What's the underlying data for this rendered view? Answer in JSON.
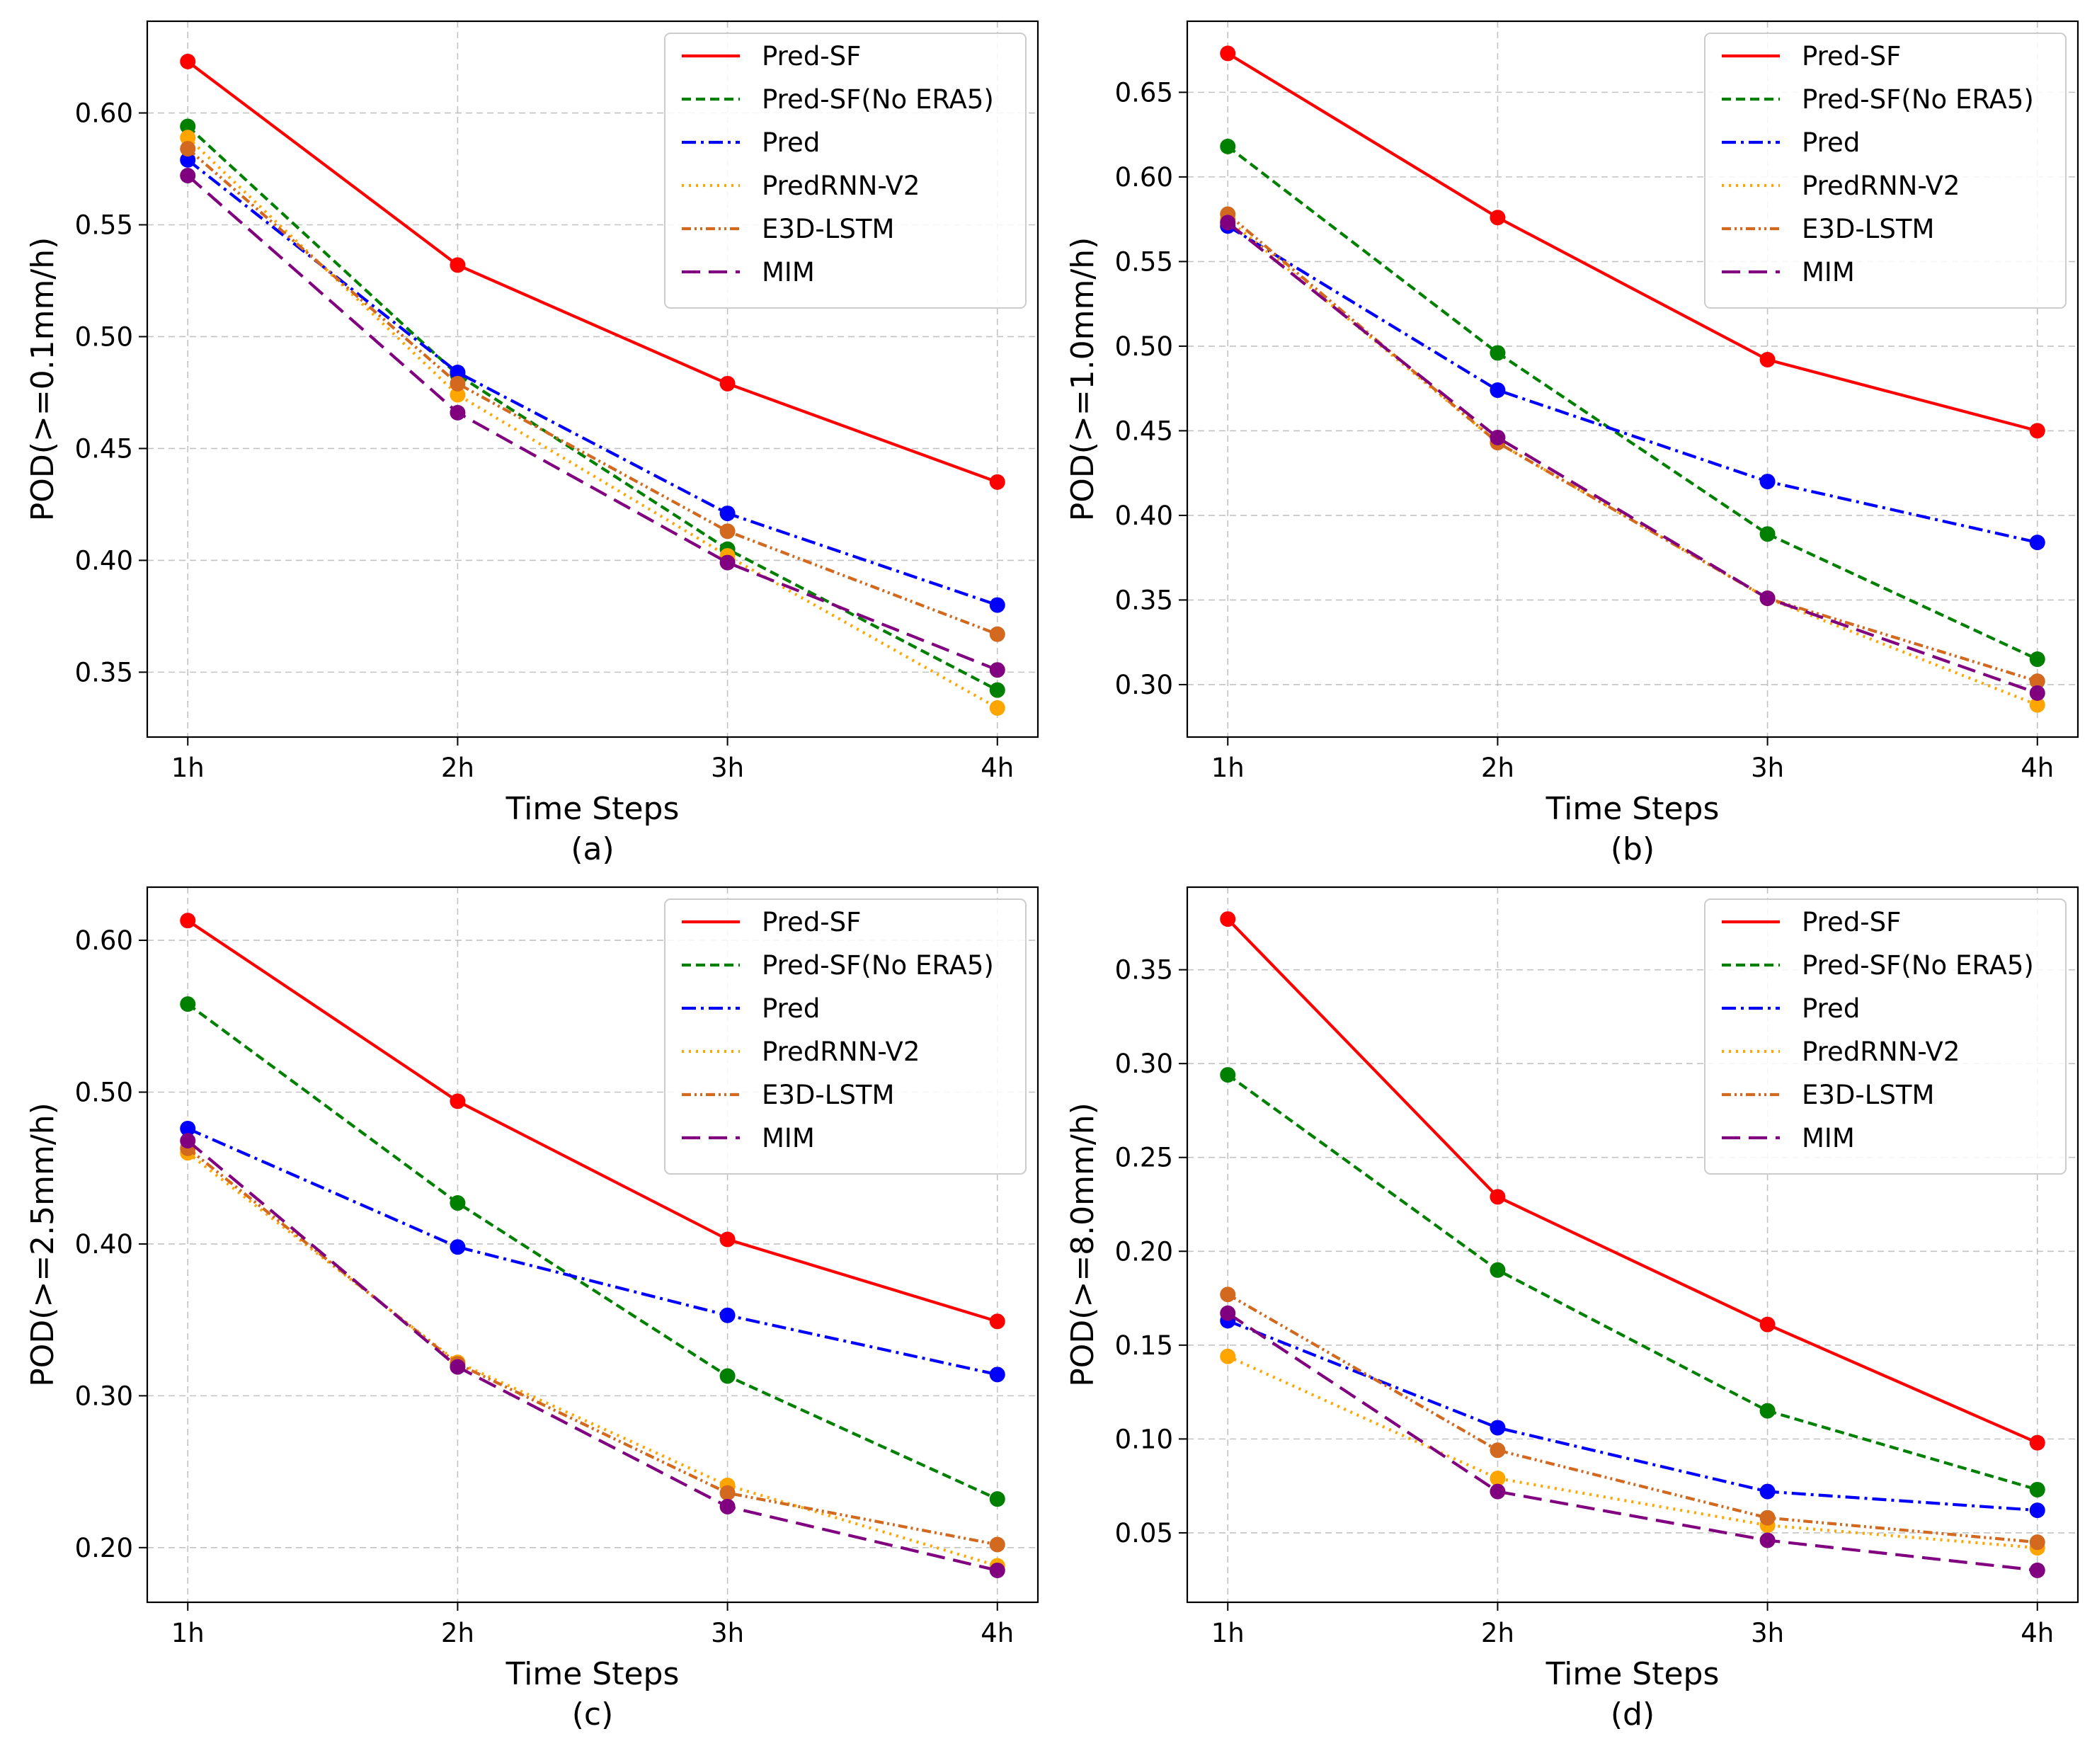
{
  "chart_data": [
    {
      "type": "line",
      "panel_label": "(a)",
      "xlabel": "Time Steps",
      "ylabel": "POD(>=0.1mm/h)",
      "categories": [
        "1h",
        "2h",
        "3h",
        "4h"
      ],
      "ylim": [
        0.321,
        0.641
      ],
      "yticks": [
        "0.35",
        "0.40",
        "0.45",
        "0.50",
        "0.55",
        "0.60"
      ],
      "legend_position": "top-right",
      "series": [
        {
          "name": "Pred-SF",
          "color": "#ff0000",
          "values": [
            0.623,
            0.532,
            0.479,
            0.435
          ]
        },
        {
          "name": "Pred-SF(No ERA5)",
          "color": "#008000",
          "values": [
            0.594,
            0.483,
            0.405,
            0.342
          ]
        },
        {
          "name": "Pred",
          "color": "#0000ff",
          "values": [
            0.579,
            0.484,
            0.421,
            0.38
          ]
        },
        {
          "name": "PredRNN-V2",
          "color": "#ffa500",
          "values": [
            0.589,
            0.474,
            0.402,
            0.334
          ]
        },
        {
          "name": "E3D-LSTM",
          "color": "#d2691e",
          "values": [
            0.584,
            0.479,
            0.413,
            0.367
          ]
        },
        {
          "name": "MIM",
          "color": "#800080",
          "values": [
            0.572,
            0.466,
            0.399,
            0.351
          ]
        }
      ]
    },
    {
      "type": "line",
      "panel_label": "(b)",
      "xlabel": "Time Steps",
      "ylabel": "POD(>=1.0mm/h)",
      "categories": [
        "1h",
        "2h",
        "3h",
        "4h"
      ],
      "ylim": [
        0.269,
        0.692
      ],
      "yticks": [
        "0.30",
        "0.35",
        "0.40",
        "0.45",
        "0.50",
        "0.55",
        "0.60",
        "0.65"
      ],
      "legend_position": "top-right",
      "series": [
        {
          "name": "Pred-SF",
          "color": "#ff0000",
          "values": [
            0.673,
            0.576,
            0.492,
            0.45
          ]
        },
        {
          "name": "Pred-SF(No ERA5)",
          "color": "#008000",
          "values": [
            0.618,
            0.496,
            0.389,
            0.315
          ]
        },
        {
          "name": "Pred",
          "color": "#0000ff",
          "values": [
            0.571,
            0.474,
            0.42,
            0.384
          ]
        },
        {
          "name": "PredRNN-V2",
          "color": "#ffa500",
          "values": [
            0.575,
            0.443,
            0.351,
            0.288
          ]
        },
        {
          "name": "E3D-LSTM",
          "color": "#d2691e",
          "values": [
            0.578,
            0.443,
            0.351,
            0.302
          ]
        },
        {
          "name": "MIM",
          "color": "#800080",
          "values": [
            0.573,
            0.446,
            0.351,
            0.295
          ]
        }
      ]
    },
    {
      "type": "line",
      "panel_label": "(c)",
      "xlabel": "Time Steps",
      "ylabel": "POD(>=2.5mm/h)",
      "categories": [
        "1h",
        "2h",
        "3h",
        "4h"
      ],
      "ylim": [
        0.164,
        0.635
      ],
      "yticks": [
        "0.20",
        "0.30",
        "0.40",
        "0.50",
        "0.60"
      ],
      "legend_position": "top-right",
      "series": [
        {
          "name": "Pred-SF",
          "color": "#ff0000",
          "values": [
            0.613,
            0.494,
            0.403,
            0.349
          ]
        },
        {
          "name": "Pred-SF(No ERA5)",
          "color": "#008000",
          "values": [
            0.558,
            0.427,
            0.313,
            0.232
          ]
        },
        {
          "name": "Pred",
          "color": "#0000ff",
          "values": [
            0.476,
            0.398,
            0.353,
            0.314
          ]
        },
        {
          "name": "PredRNN-V2",
          "color": "#ffa500",
          "values": [
            0.46,
            0.322,
            0.241,
            0.188
          ]
        },
        {
          "name": "E3D-LSTM",
          "color": "#d2691e",
          "values": [
            0.463,
            0.321,
            0.236,
            0.202
          ]
        },
        {
          "name": "MIM",
          "color": "#800080",
          "values": [
            0.468,
            0.319,
            0.227,
            0.185
          ]
        }
      ]
    },
    {
      "type": "line",
      "panel_label": "(d)",
      "xlabel": "Time Steps",
      "ylabel": "POD(>=8.0mm/h)",
      "categories": [
        "1h",
        "2h",
        "3h",
        "4h"
      ],
      "ylim": [
        0.013,
        0.394
      ],
      "yticks": [
        "0.05",
        "0.10",
        "0.15",
        "0.20",
        "0.25",
        "0.30",
        "0.35"
      ],
      "legend_position": "top-right",
      "series": [
        {
          "name": "Pred-SF",
          "color": "#ff0000",
          "values": [
            0.377,
            0.229,
            0.161,
            0.098
          ]
        },
        {
          "name": "Pred-SF(No ERA5)",
          "color": "#008000",
          "values": [
            0.294,
            0.19,
            0.115,
            0.073
          ]
        },
        {
          "name": "Pred",
          "color": "#0000ff",
          "values": [
            0.163,
            0.106,
            0.072,
            0.062
          ]
        },
        {
          "name": "PredRNN-V2",
          "color": "#ffa500",
          "values": [
            0.144,
            0.079,
            0.054,
            0.042
          ]
        },
        {
          "name": "E3D-LSTM",
          "color": "#d2691e",
          "values": [
            0.177,
            0.094,
            0.058,
            0.045
          ]
        },
        {
          "name": "MIM",
          "color": "#800080",
          "values": [
            0.167,
            0.072,
            0.046,
            0.03
          ]
        }
      ]
    }
  ]
}
